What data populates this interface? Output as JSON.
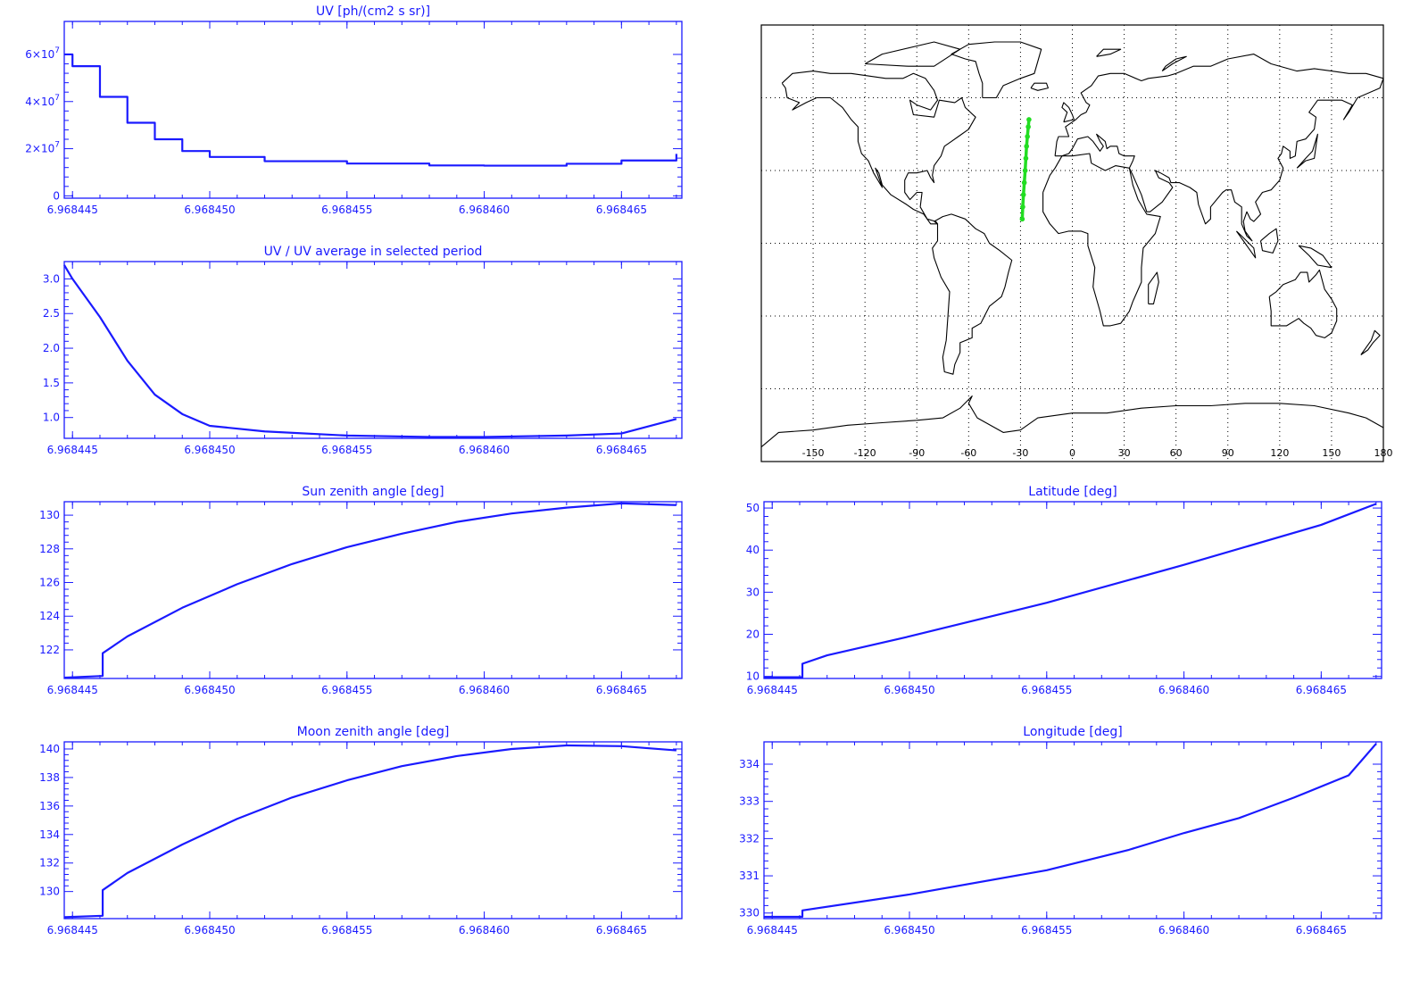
{
  "colors": {
    "axis": "#1a1aff",
    "line": "#1a1aff",
    "map_frame": "#000000",
    "coast": "#000000",
    "track": "#22dd22"
  },
  "x_ticks": [
    "6.968445",
    "6.968450",
    "6.968455",
    "6.968460",
    "6.968465"
  ],
  "chart_data": [
    {
      "id": "uv",
      "type": "line",
      "title": "UV [ph/(cm2 s sr)]",
      "xlabel": "",
      "ylabel": "",
      "xlim": [
        6.9684447,
        6.9684672
      ],
      "ylim": [
        -1000000,
        74000000
      ],
      "yticks": [
        {
          "value": 0,
          "label": "0"
        },
        {
          "value": 20000000,
          "label": "2x10^7"
        },
        {
          "value": 40000000,
          "label": "4x10^7"
        },
        {
          "value": 60000000,
          "label": "6x10^7"
        }
      ],
      "step": true,
      "x": [
        6.9684447,
        6.968445,
        6.968446,
        6.968447,
        6.968448,
        6.968449,
        6.96845,
        6.968452,
        6.968455,
        6.968458,
        6.96846,
        6.968463,
        6.968465,
        6.968467
      ],
      "y": [
        60000000,
        55000000,
        42000000,
        31000000,
        24000000,
        19000000,
        16500000,
        14700000,
        13700000,
        12900000,
        12800000,
        13600000,
        15000000,
        17800000
      ]
    },
    {
      "id": "uv_ratio",
      "type": "line",
      "title": "UV / UV average in selected period",
      "xlabel": "",
      "ylabel": "",
      "xlim": [
        6.9684447,
        6.9684672
      ],
      "ylim": [
        0.7,
        3.25
      ],
      "yticks": [
        {
          "value": 1.0,
          "label": "1.0"
        },
        {
          "value": 1.5,
          "label": "1.5"
        },
        {
          "value": 2.0,
          "label": "2.0"
        },
        {
          "value": 2.5,
          "label": "2.5"
        },
        {
          "value": 3.0,
          "label": "3.0"
        }
      ],
      "x": [
        6.9684447,
        6.968445,
        6.968446,
        6.968447,
        6.968448,
        6.968449,
        6.96845,
        6.968452,
        6.968455,
        6.968458,
        6.96846,
        6.968463,
        6.968465,
        6.968467
      ],
      "y": [
        3.2,
        3.0,
        2.45,
        1.82,
        1.33,
        1.05,
        0.88,
        0.8,
        0.74,
        0.72,
        0.72,
        0.74,
        0.77,
        0.98
      ]
    },
    {
      "id": "sun_zenith",
      "type": "line",
      "title": "Sun zenith angle [deg]",
      "xlabel": "",
      "ylabel": "",
      "xlim": [
        6.9684447,
        6.9684672
      ],
      "ylim": [
        120.3,
        130.8
      ],
      "yticks": [
        {
          "value": 122,
          "label": "122"
        },
        {
          "value": 124,
          "label": "124"
        },
        {
          "value": 126,
          "label": "126"
        },
        {
          "value": 128,
          "label": "128"
        },
        {
          "value": 130,
          "label": "130"
        }
      ],
      "x": [
        6.9684447,
        6.9684461,
        6.9684461,
        6.968447,
        6.968449,
        6.968451,
        6.968453,
        6.968455,
        6.968457,
        6.968459,
        6.968461,
        6.968463,
        6.968465,
        6.968467
      ],
      "y": [
        120.35,
        120.45,
        121.8,
        122.8,
        124.5,
        125.9,
        127.1,
        128.1,
        128.9,
        129.6,
        130.1,
        130.45,
        130.7,
        130.6
      ]
    },
    {
      "id": "latitude",
      "type": "line",
      "title": "Latitude [deg]",
      "xlabel": "",
      "ylabel": "",
      "xlim": [
        6.9684447,
        6.9684672
      ],
      "ylim": [
        9.5,
        51.5
      ],
      "yticks": [
        {
          "value": 10,
          "label": "10"
        },
        {
          "value": 20,
          "label": "20"
        },
        {
          "value": 30,
          "label": "30"
        },
        {
          "value": 40,
          "label": "40"
        },
        {
          "value": 50,
          "label": "50"
        }
      ],
      "x": [
        6.9684447,
        6.9684461,
        6.9684461,
        6.968447,
        6.96845,
        6.968455,
        6.96846,
        6.968465,
        6.968467
      ],
      "y": [
        9.8,
        9.8,
        13.0,
        15.0,
        19.5,
        27.5,
        36.5,
        46.0,
        51.0
      ]
    },
    {
      "id": "moon_zenith",
      "type": "line",
      "title": "Moon zenith angle [deg]",
      "xlabel": "",
      "ylabel": "",
      "xlim": [
        6.9684447,
        6.9684672
      ],
      "ylim": [
        128.1,
        140.5
      ],
      "yticks": [
        {
          "value": 130,
          "label": "130"
        },
        {
          "value": 132,
          "label": "132"
        },
        {
          "value": 134,
          "label": "134"
        },
        {
          "value": 136,
          "label": "136"
        },
        {
          "value": 138,
          "label": "138"
        },
        {
          "value": 140,
          "label": "140"
        }
      ],
      "x": [
        6.9684447,
        6.9684461,
        6.9684461,
        6.968447,
        6.968449,
        6.968451,
        6.968453,
        6.968455,
        6.968457,
        6.968459,
        6.968461,
        6.968463,
        6.968465,
        6.968467
      ],
      "y": [
        128.2,
        128.3,
        130.1,
        131.3,
        133.3,
        135.1,
        136.6,
        137.8,
        138.8,
        139.5,
        140.0,
        140.25,
        140.2,
        139.9
      ]
    },
    {
      "id": "longitude",
      "type": "line",
      "title": "Longitude [deg]",
      "xlabel": "",
      "ylabel": "",
      "xlim": [
        6.9684447,
        6.9684672
      ],
      "ylim": [
        329.85,
        334.6
      ],
      "yticks": [
        {
          "value": 330,
          "label": "330"
        },
        {
          "value": 331,
          "label": "331"
        },
        {
          "value": 332,
          "label": "332"
        },
        {
          "value": 333,
          "label": "333"
        },
        {
          "value": 334,
          "label": "334"
        }
      ],
      "x": [
        6.9684447,
        6.9684461,
        6.9684461,
        6.96845,
        6.968455,
        6.968458,
        6.96846,
        6.968462,
        6.968464,
        6.968466,
        6.968467
      ],
      "y": [
        329.9,
        329.9,
        330.07,
        330.5,
        331.15,
        331.7,
        332.15,
        332.55,
        333.1,
        333.7,
        334.55
      ]
    }
  ],
  "map": {
    "type": "scatter",
    "xlim": [
      -180,
      180
    ],
    "ylim": [
      -90,
      90
    ],
    "grid": true,
    "xticks": [
      -150,
      -120,
      -90,
      -60,
      -30,
      0,
      30,
      60,
      90,
      120,
      150,
      180
    ],
    "yticks": [
      -60,
      -30,
      0,
      30,
      60
    ],
    "xtick_labels": [
      "-150",
      "-120",
      "-90",
      "-60",
      "-30",
      "0",
      "30",
      "60",
      "90",
      "120",
      "150",
      "180"
    ],
    "track_lon": [
      -29.0,
      -28.7,
      -28.3,
      -27.8,
      -27.3,
      -26.9,
      -26.5,
      -26.0,
      -25.5,
      -25.1
    ],
    "track_lat": [
      10,
      15,
      20,
      25,
      30,
      35,
      40,
      44,
      48,
      51
    ]
  }
}
